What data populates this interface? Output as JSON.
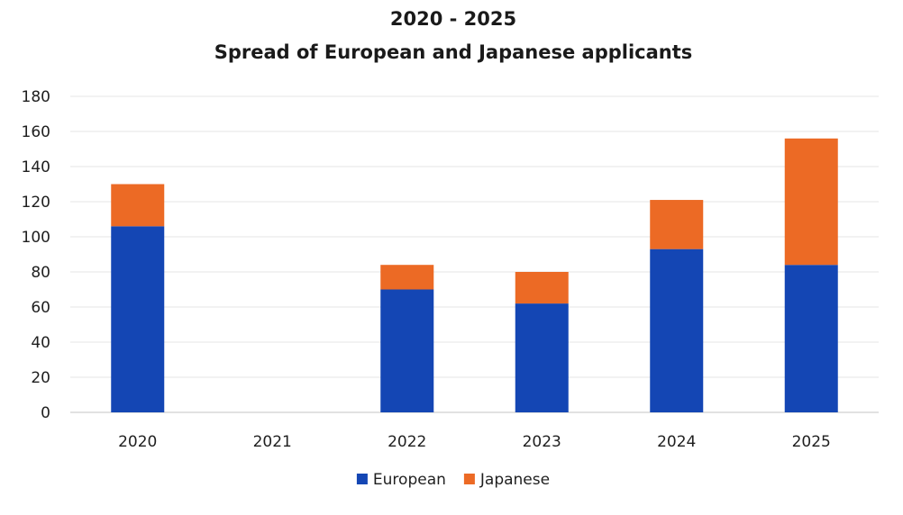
{
  "chart_data": {
    "type": "bar",
    "stacked": true,
    "title": "2020 - 2025",
    "subtitle": "Spread of European and Japanese applicants",
    "xlabel": "",
    "ylabel": "",
    "categories": [
      "2020",
      "2021",
      "2022",
      "2023",
      "2024",
      "2025"
    ],
    "series": [
      {
        "name": "European",
        "color": "#1446b4",
        "values": [
          106,
          0,
          70,
          62,
          93,
          84
        ]
      },
      {
        "name": "Japanese",
        "color": "#ec6a25",
        "values": [
          24,
          0,
          14,
          18,
          28,
          72
        ]
      }
    ],
    "ylim": [
      0,
      180
    ],
    "yticks": [
      0,
      20,
      40,
      60,
      80,
      100,
      120,
      140,
      160,
      180
    ],
    "grid": true,
    "legend": "bottom-center"
  }
}
